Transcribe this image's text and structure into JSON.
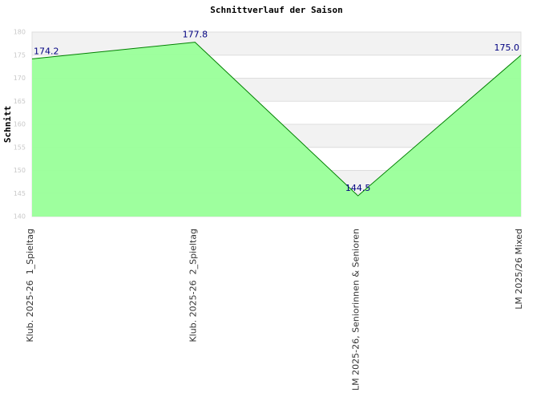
{
  "chart_data": {
    "type": "area",
    "title": "Schnittverlauf der Saison",
    "y_label": "Schnitt",
    "categories": [
      "Klub. 2025-26  1_Spieltag",
      "Klub. 2025-26  2_Spieltag",
      "LM 2025-26, Seniorinnen & Senioren",
      "LM 2025/26 Mixed"
    ],
    "series": [
      {
        "name": "Schnitt",
        "color": "#008000",
        "fill": "#99ff99",
        "values": [
          174.2,
          177.8,
          144.5,
          175.0
        ],
        "value_labels": [
          "174.2",
          "177.8",
          "144.5",
          "175.0"
        ]
      }
    ],
    "ylim": [
      140,
      180
    ],
    "yticks": [
      140,
      145,
      150,
      155,
      160,
      165,
      170,
      175,
      180
    ],
    "grid": true
  }
}
